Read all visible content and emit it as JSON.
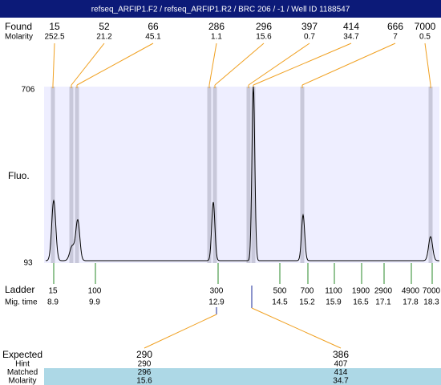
{
  "header": {
    "title": "refseq_ARFIP1.F2 / refseq_ARFIP1.R2 / BRC 206 / -1 / Well ID 1188547"
  },
  "found": {
    "label": "Found",
    "sublabel": "Molarity",
    "peaks": [
      {
        "size": 15,
        "molarity": 252.5
      },
      {
        "size": 52,
        "molarity": 21.2
      },
      {
        "size": 66,
        "molarity": 45.1
      },
      {
        "size": 286,
        "molarity": 1.1
      },
      {
        "size": 296,
        "molarity": 15.6
      },
      {
        "size": 397,
        "molarity": 0.7
      },
      {
        "size": 414,
        "molarity": 34.7
      },
      {
        "size": 666,
        "molarity": 7
      },
      {
        "size": 7000,
        "molarity": 0.5
      }
    ]
  },
  "plot": {
    "ymax_label": "706",
    "ymin_label": "93",
    "axis_label": "Fluo."
  },
  "ladder": {
    "label": "Ladder",
    "sublabel": "Mig. time",
    "bands": [
      {
        "size": 15,
        "time": 8.9
      },
      {
        "size": 100,
        "time": 9.9
      },
      {
        "size": 300,
        "time": 12.9
      },
      {
        "size": 500,
        "time": 14.5
      },
      {
        "size": 700,
        "time": 15.2
      },
      {
        "size": 1100,
        "time": 15.9
      },
      {
        "size": 1900,
        "time": 16.5
      },
      {
        "size": 2900,
        "time": 17.1
      },
      {
        "size": 4900,
        "time": 17.8
      },
      {
        "size": 7000,
        "time": 18.3
      }
    ]
  },
  "expected": {
    "labels": [
      "Expected",
      "Hint",
      "Matched",
      "Molarity"
    ],
    "columns": [
      {
        "expected": 290,
        "hint": 290,
        "matched": 296,
        "molarity": 15.6
      },
      {
        "expected": 386,
        "hint": 407,
        "matched": 414,
        "molarity": 34.7
      }
    ]
  }
}
